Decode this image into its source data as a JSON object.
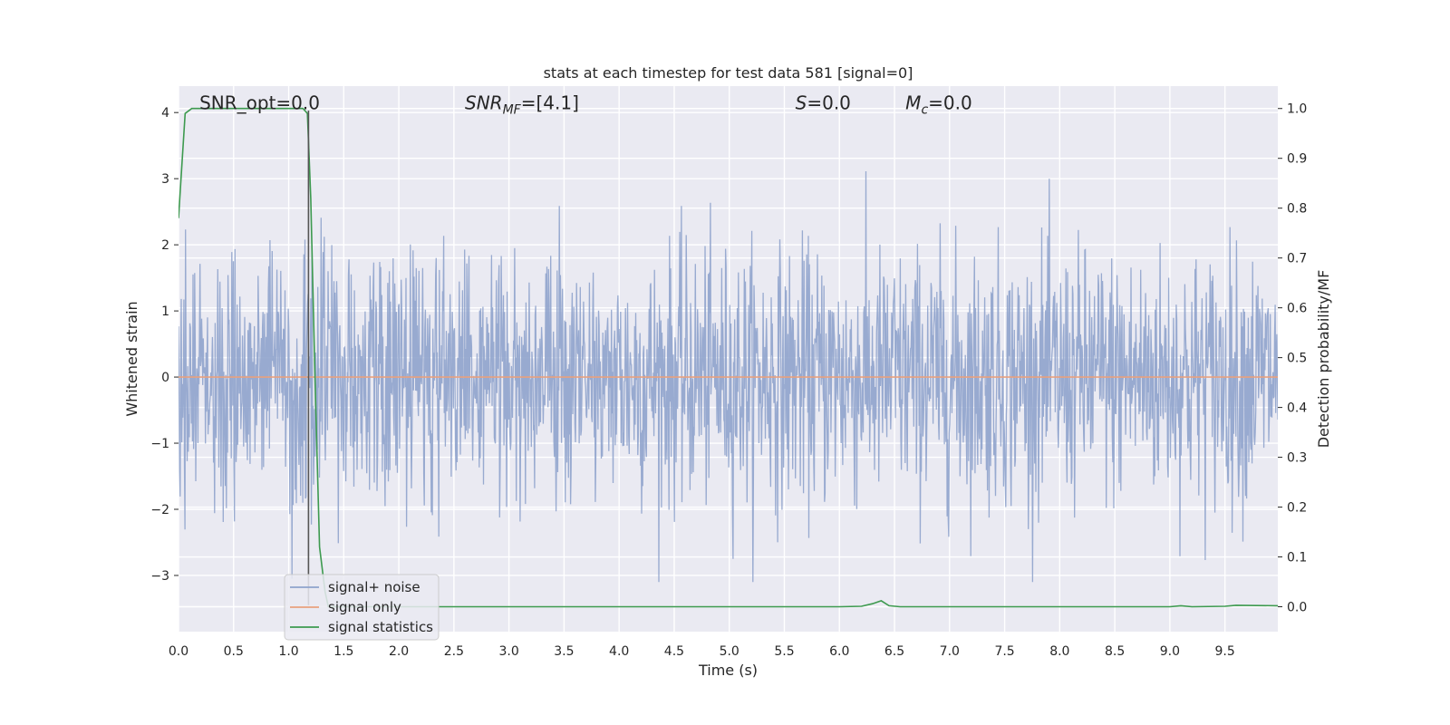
{
  "chart_data": {
    "type": "line",
    "title": "stats at each timestep for test data 581 [signal=0]",
    "xlabel": "Time (s)",
    "ylabel_left": "Whitened strain",
    "ylabel_right": "Detection probability/MF",
    "xlim": [
      0.0,
      9.98
    ],
    "ylim_left": [
      -3.85,
      4.4
    ],
    "ylim_right": [
      -0.05,
      1.045
    ],
    "x_ticks": [
      0.0,
      0.5,
      1.0,
      1.5,
      2.0,
      2.5,
      3.0,
      3.5,
      4.0,
      4.5,
      5.0,
      5.5,
      6.0,
      6.5,
      7.0,
      7.5,
      8.0,
      8.5,
      9.0,
      9.5
    ],
    "x_tick_labels": [
      "0.0",
      "0.5",
      "1.0",
      "1.5",
      "2.0",
      "2.5",
      "3.0",
      "3.5",
      "4.0",
      "4.5",
      "5.0",
      "5.5",
      "6.0",
      "6.5",
      "7.0",
      "7.5",
      "8.0",
      "8.5",
      "9.0",
      "9.5"
    ],
    "y_left_ticks": [
      -3,
      -2,
      -1,
      0,
      1,
      2,
      3,
      4
    ],
    "y_left_tick_labels": [
      "−3",
      "−2",
      "−1",
      "0",
      "1",
      "2",
      "3",
      "4"
    ],
    "y_right_ticks": [
      0.0,
      0.1,
      0.2,
      0.3,
      0.4,
      0.5,
      0.6,
      0.7,
      0.8,
      0.9,
      1.0
    ],
    "y_right_tick_labels": [
      "0.0",
      "0.1",
      "0.2",
      "0.3",
      "0.4",
      "0.5",
      "0.6",
      "0.7",
      "0.8",
      "0.9",
      "1.0"
    ],
    "grid": true,
    "legend_position": "lower-left",
    "annotations": [
      {
        "label": "SNR_opt=0.0",
        "x": 0.19,
        "y": 4.05
      },
      {
        "label": "SNR_MF=[4.1]",
        "x": 2.6,
        "y": 4.05
      },
      {
        "label": "S=0.0",
        "x": 5.6,
        "y": 4.05
      },
      {
        "label": "M_c=0.0",
        "x": 6.6,
        "y": 4.05
      }
    ],
    "series": [
      {
        "name": "signal+ noise",
        "axis": "left",
        "color": "#8fa3cc",
        "style": "noise",
        "sample_rate": 204.8,
        "std": 0.95,
        "min": -3.1,
        "max": 3.4
      },
      {
        "name": "signal only",
        "axis": "left",
        "color": "#e8a07e",
        "x": [
          0.0,
          9.98
        ],
        "values": [
          0.0,
          0.0
        ]
      },
      {
        "name": "signal statistics",
        "axis": "right",
        "color": "#3d9a4f",
        "x": [
          0.0,
          0.06,
          0.12,
          0.5,
          1.0,
          1.13,
          1.17,
          1.2,
          1.24,
          1.28,
          1.33,
          1.36,
          1.5,
          2.0,
          3.0,
          4.0,
          5.0,
          6.0,
          6.2,
          6.3,
          6.38,
          6.45,
          6.55,
          7.0,
          8.0,
          9.0,
          9.1,
          9.2,
          9.5,
          9.6,
          9.98
        ],
        "values": [
          0.78,
          0.99,
          1.0,
          1.0,
          1.0,
          1.0,
          0.99,
          0.82,
          0.45,
          0.12,
          0.03,
          0.0,
          0.0,
          0.0,
          0.0,
          0.0,
          0.0,
          0.0,
          0.001,
          0.006,
          0.012,
          0.002,
          0.0,
          0.0,
          0.0,
          0.0,
          0.002,
          0.0,
          0.001,
          0.003,
          0.002
        ]
      },
      {
        "name": "",
        "axis": "left",
        "color": "#555555",
        "x": [
          1.18,
          1.18
        ],
        "values": [
          4.03,
          -3.45
        ]
      }
    ]
  }
}
